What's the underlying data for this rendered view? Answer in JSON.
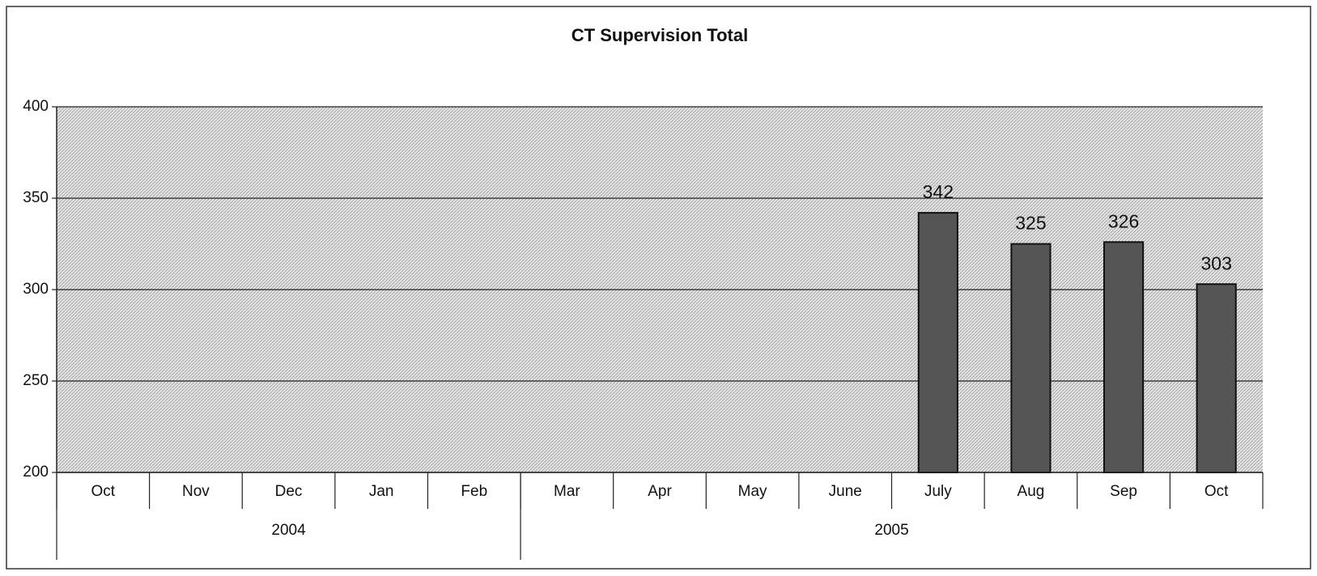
{
  "chart_data": {
    "type": "bar",
    "title": "CT Supervision Total",
    "categories": [
      "Oct",
      "Nov",
      "Dec",
      "Jan",
      "Feb",
      "Mar",
      "Apr",
      "May",
      "June",
      "July",
      "Aug",
      "Sep",
      "Oct"
    ],
    "year_groups": [
      {
        "label": "2004",
        "span": 5
      },
      {
        "label": "2005",
        "span": 8
      }
    ],
    "values": [
      null,
      null,
      null,
      null,
      null,
      null,
      null,
      null,
      null,
      342,
      325,
      326,
      303
    ],
    "color": "#555555",
    "ylim": [
      200,
      400
    ],
    "yticks": [
      200,
      250,
      300,
      350,
      400
    ],
    "grid": true
  }
}
